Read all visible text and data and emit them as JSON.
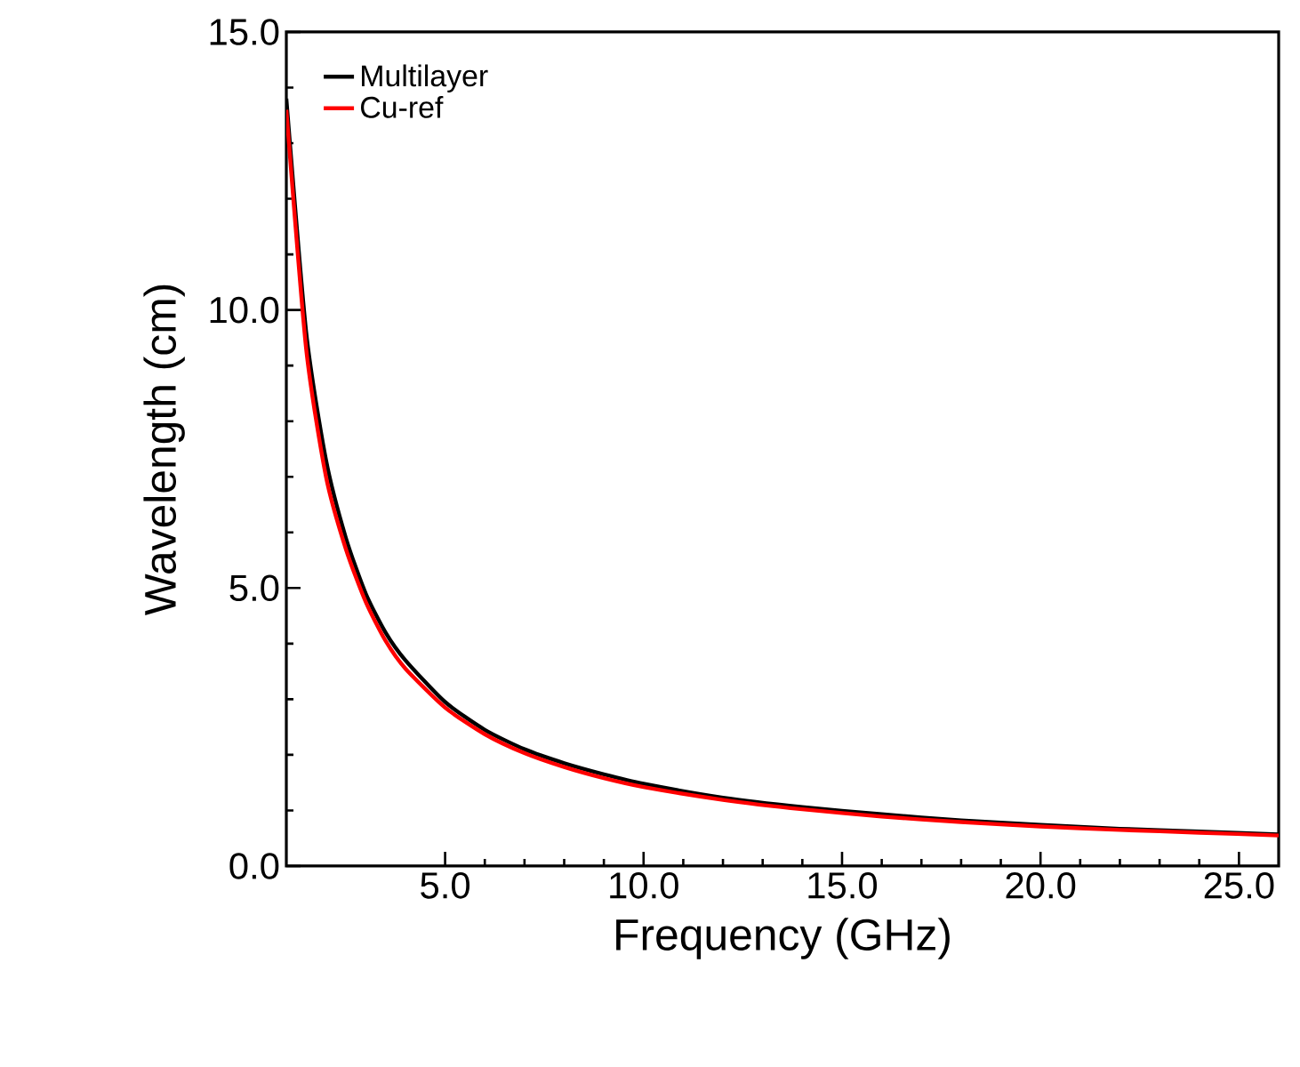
{
  "chart_data": {
    "type": "line",
    "xlabel": "Frequency (GHz)",
    "ylabel": "Wavelength (cm)",
    "xlim": [
      1,
      26
    ],
    "ylim": [
      0,
      15
    ],
    "xticks": [
      {
        "value": 5,
        "label": "5.0"
      },
      {
        "value": 10,
        "label": "10.0"
      },
      {
        "value": 15,
        "label": "15.0"
      },
      {
        "value": 20,
        "label": "20.0"
      },
      {
        "value": 25,
        "label": "25.0"
      }
    ],
    "yticks": [
      {
        "value": 0,
        "label": "0.0"
      },
      {
        "value": 5,
        "label": "5.0"
      },
      {
        "value": 10,
        "label": "10.0"
      },
      {
        "value": 15,
        "label": "15.0"
      }
    ],
    "x": [
      1,
      1.5,
      2,
      2.5,
      3,
      3.5,
      4,
      5,
      6,
      7,
      8,
      9,
      10,
      12,
      14,
      16,
      18,
      20,
      22,
      24,
      26
    ],
    "series": [
      {
        "name": "Multilayer",
        "color": "#000000",
        "values": [
          13.8,
          9.6,
          7.3,
          5.9,
          4.9,
          4.2,
          3.7,
          2.95,
          2.45,
          2.1,
          1.85,
          1.65,
          1.48,
          1.23,
          1.06,
          0.93,
          0.82,
          0.74,
          0.67,
          0.62,
          0.57
        ]
      },
      {
        "name": "Cu-ref",
        "color": "#ff0000",
        "values": [
          13.6,
          9.3,
          7.0,
          5.7,
          4.75,
          4.05,
          3.55,
          2.85,
          2.37,
          2.03,
          1.78,
          1.58,
          1.42,
          1.19,
          1.02,
          0.89,
          0.79,
          0.71,
          0.65,
          0.6,
          0.55
        ]
      }
    ],
    "legend": "top left",
    "grid": false,
    "marker": "none",
    "line_style": "solid"
  }
}
